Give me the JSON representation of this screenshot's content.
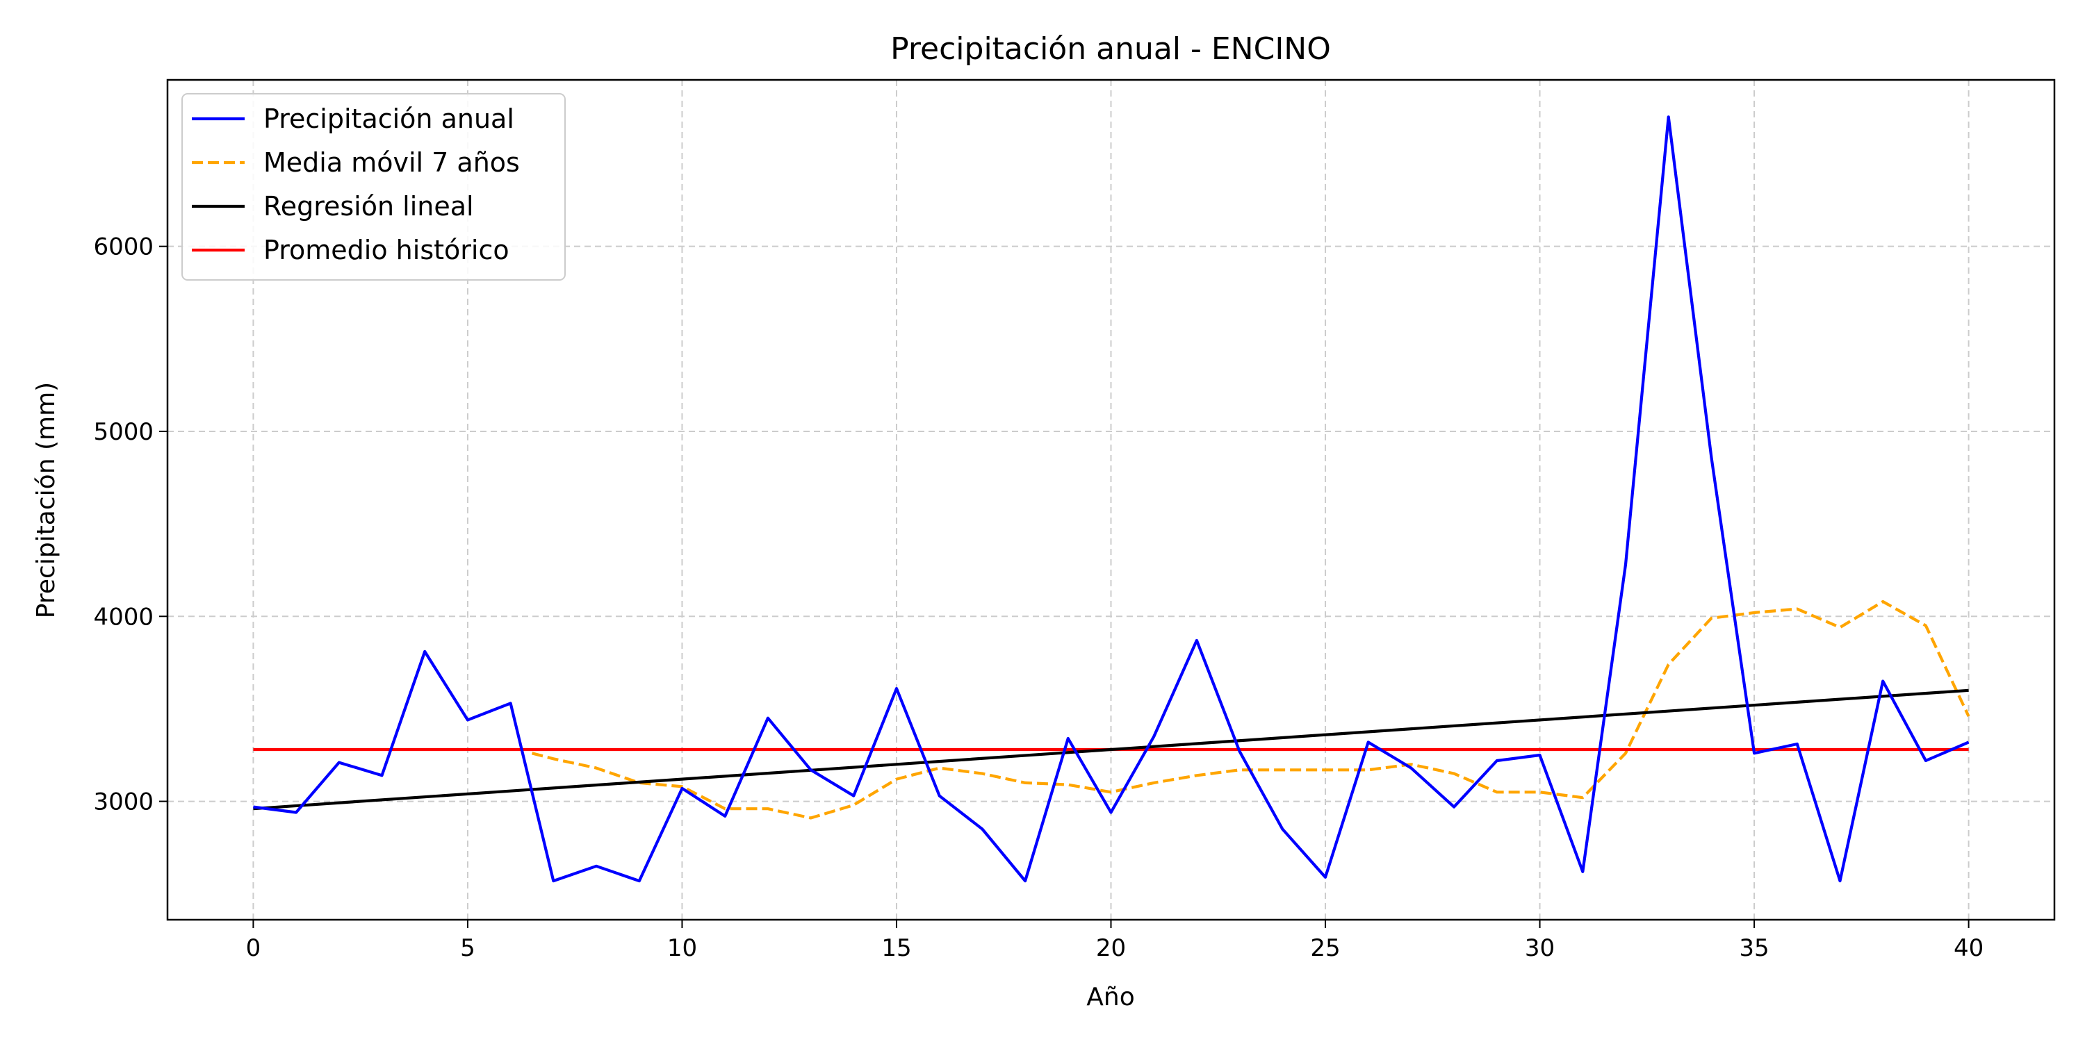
{
  "chart_data": {
    "type": "line",
    "title": "Precipitación anual - ENCINO",
    "xlabel": "Año",
    "ylabel": "Precipitación (mm)",
    "xlim": [
      -2,
      42
    ],
    "ylim": [
      2360,
      6900
    ],
    "xticks": [
      0,
      5,
      10,
      15,
      20,
      25,
      30,
      35,
      40
    ],
    "yticks": [
      3000,
      4000,
      5000,
      6000
    ],
    "grid": true,
    "legend_position": "top-left",
    "x": [
      0,
      1,
      2,
      3,
      4,
      5,
      6,
      7,
      8,
      9,
      10,
      11,
      12,
      13,
      14,
      15,
      16,
      17,
      18,
      19,
      20,
      21,
      22,
      23,
      24,
      25,
      26,
      27,
      28,
      29,
      30,
      31,
      32,
      33,
      34,
      35,
      36,
      37,
      38,
      39,
      40
    ],
    "series": [
      {
        "name": "Precipitación anual",
        "style": "solid",
        "color": "#0000ff",
        "values": [
          2970,
          2940,
          3210,
          3140,
          3810,
          3440,
          3530,
          2570,
          2650,
          2570,
          3070,
          2920,
          3450,
          3170,
          3030,
          3610,
          3030,
          2850,
          2570,
          3340,
          2940,
          3350,
          3870,
          3270,
          2850,
          2590,
          3320,
          3180,
          2970,
          3220,
          3250,
          2620,
          4280,
          6700,
          4860,
          3260,
          3310,
          2570,
          3650,
          3220,
          3320
        ]
      },
      {
        "name": "Media móvil 7 años",
        "style": "dashed",
        "color": "#ffa500",
        "x": [
          6.5,
          7,
          8,
          9,
          10,
          11,
          12,
          13,
          14,
          15,
          16,
          17,
          18,
          19,
          20,
          21,
          22,
          23,
          24,
          25,
          26,
          27,
          28,
          29,
          30,
          31,
          32,
          33,
          34,
          35,
          36,
          37,
          38,
          39,
          40
        ],
        "values": [
          3260,
          3230,
          3180,
          3100,
          3080,
          2960,
          2960,
          2910,
          2980,
          3120,
          3180,
          3150,
          3100,
          3090,
          3050,
          3100,
          3140,
          3170,
          3170,
          3170,
          3170,
          3200,
          3150,
          3050,
          3050,
          3020,
          3260,
          3740,
          3990,
          4020,
          4040,
          3940,
          4080,
          3950,
          3460
        ]
      },
      {
        "name": "Regresión lineal",
        "style": "solid",
        "color": "#000000",
        "x": [
          0,
          40
        ],
        "values": [
          2960,
          3600
        ]
      },
      {
        "name": "Promedio histórico",
        "style": "solid",
        "color": "#ff0000",
        "x": [
          0,
          40
        ],
        "values": [
          3280,
          3280
        ]
      }
    ]
  }
}
